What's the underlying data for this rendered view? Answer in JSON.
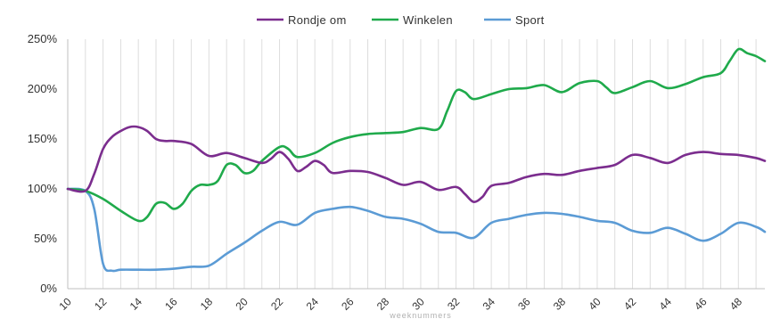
{
  "chart_data": {
    "type": "line",
    "title": "",
    "xlabel": "weeknummers",
    "ylabel": "",
    "xlim": [
      10,
      49.5
    ],
    "ylim": [
      0,
      250
    ],
    "x_ticks": [
      10,
      12,
      14,
      16,
      18,
      20,
      22,
      24,
      26,
      28,
      30,
      32,
      34,
      36,
      38,
      40,
      42,
      44,
      46,
      48
    ],
    "y_ticks": [
      0,
      50,
      100,
      150,
      200,
      250
    ],
    "y_tick_labels": [
      "0%",
      "50%",
      "100%",
      "150%",
      "200%",
      "250%"
    ],
    "grid": {
      "vertical": true,
      "horizontal": false
    },
    "legend_position": "top-center",
    "series": [
      {
        "name": "Rondje om",
        "color": "#7b2d8e",
        "points": [
          [
            10,
            100
          ],
          [
            11,
            98
          ],
          [
            11.5,
            115
          ],
          [
            12,
            140
          ],
          [
            12.5,
            152
          ],
          [
            13,
            158
          ],
          [
            13.5,
            162
          ],
          [
            14,
            162
          ],
          [
            14.5,
            158
          ],
          [
            15,
            150
          ],
          [
            15.5,
            148
          ],
          [
            16,
            148
          ],
          [
            17,
            145
          ],
          [
            18,
            133
          ],
          [
            19,
            136
          ],
          [
            20,
            131
          ],
          [
            21,
            126
          ],
          [
            21.5,
            130
          ],
          [
            22,
            137
          ],
          [
            22.5,
            130
          ],
          [
            23,
            118
          ],
          [
            23.5,
            122
          ],
          [
            24,
            128
          ],
          [
            24.5,
            124
          ],
          [
            25,
            116
          ],
          [
            26,
            118
          ],
          [
            27,
            117
          ],
          [
            28,
            111
          ],
          [
            29,
            104
          ],
          [
            30,
            107
          ],
          [
            31,
            99
          ],
          [
            32,
            102
          ],
          [
            32.5,
            95
          ],
          [
            33,
            87
          ],
          [
            33.5,
            92
          ],
          [
            34,
            103
          ],
          [
            35,
            106
          ],
          [
            36,
            112
          ],
          [
            37,
            115
          ],
          [
            38,
            114
          ],
          [
            39,
            118
          ],
          [
            40,
            121
          ],
          [
            41,
            124
          ],
          [
            42,
            134
          ],
          [
            43,
            131
          ],
          [
            44,
            126
          ],
          [
            45,
            134
          ],
          [
            46,
            137
          ],
          [
            47,
            135
          ],
          [
            48,
            134
          ],
          [
            49,
            131
          ],
          [
            49.5,
            128
          ]
        ]
      },
      {
        "name": "Winkelen",
        "color": "#1faa4b",
        "points": [
          [
            10,
            100
          ],
          [
            11,
            98
          ],
          [
            12,
            90
          ],
          [
            13,
            78
          ],
          [
            14,
            68
          ],
          [
            14.5,
            72
          ],
          [
            15,
            85
          ],
          [
            15.5,
            86
          ],
          [
            16,
            80
          ],
          [
            16.5,
            85
          ],
          [
            17,
            98
          ],
          [
            17.5,
            104
          ],
          [
            18,
            104
          ],
          [
            18.5,
            108
          ],
          [
            19,
            124
          ],
          [
            19.5,
            124
          ],
          [
            20,
            116
          ],
          [
            20.5,
            118
          ],
          [
            21,
            128
          ],
          [
            22,
            142
          ],
          [
            22.5,
            140
          ],
          [
            23,
            132
          ],
          [
            24,
            136
          ],
          [
            25,
            146
          ],
          [
            26,
            152
          ],
          [
            27,
            155
          ],
          [
            28,
            156
          ],
          [
            29,
            157
          ],
          [
            30,
            161
          ],
          [
            31,
            160
          ],
          [
            31.5,
            178
          ],
          [
            32,
            198
          ],
          [
            32.5,
            197
          ],
          [
            33,
            190
          ],
          [
            34,
            195
          ],
          [
            35,
            200
          ],
          [
            36,
            201
          ],
          [
            37,
            204
          ],
          [
            38,
            197
          ],
          [
            39,
            206
          ],
          [
            40,
            208
          ],
          [
            40.5,
            202
          ],
          [
            41,
            196
          ],
          [
            42,
            202
          ],
          [
            43,
            208
          ],
          [
            44,
            201
          ],
          [
            45,
            205
          ],
          [
            46,
            212
          ],
          [
            47,
            216
          ],
          [
            47.5,
            228
          ],
          [
            48,
            240
          ],
          [
            48.5,
            236
          ],
          [
            49,
            233
          ],
          [
            49.5,
            228
          ]
        ]
      },
      {
        "name": "Sport",
        "color": "#5b9bd5",
        "points": [
          [
            10,
            100
          ],
          [
            11,
            98
          ],
          [
            11.5,
            80
          ],
          [
            12,
            25
          ],
          [
            12.5,
            18
          ],
          [
            13,
            19
          ],
          [
            14,
            19
          ],
          [
            15,
            19
          ],
          [
            16,
            20
          ],
          [
            17,
            22
          ],
          [
            18,
            23
          ],
          [
            19,
            35
          ],
          [
            20,
            46
          ],
          [
            21,
            58
          ],
          [
            22,
            67
          ],
          [
            23,
            64
          ],
          [
            24,
            76
          ],
          [
            25,
            80
          ],
          [
            26,
            82
          ],
          [
            27,
            78
          ],
          [
            28,
            72
          ],
          [
            29,
            70
          ],
          [
            30,
            65
          ],
          [
            31,
            57
          ],
          [
            32,
            56
          ],
          [
            33,
            51
          ],
          [
            34,
            66
          ],
          [
            35,
            70
          ],
          [
            36,
            74
          ],
          [
            37,
            76
          ],
          [
            38,
            75
          ],
          [
            39,
            72
          ],
          [
            40,
            68
          ],
          [
            41,
            66
          ],
          [
            42,
            58
          ],
          [
            43,
            56
          ],
          [
            44,
            61
          ],
          [
            45,
            55
          ],
          [
            46,
            48
          ],
          [
            47,
            55
          ],
          [
            48,
            66
          ],
          [
            49,
            62
          ],
          [
            49.5,
            57
          ]
        ]
      }
    ]
  }
}
